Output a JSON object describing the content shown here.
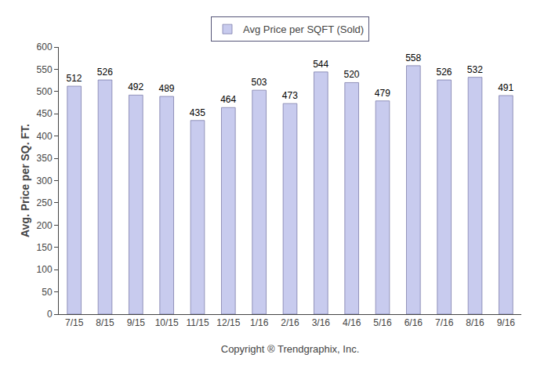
{
  "chart_data": {
    "type": "bar",
    "categories": [
      "7/15",
      "8/15",
      "9/15",
      "10/15",
      "11/15",
      "12/15",
      "1/16",
      "2/16",
      "3/16",
      "4/16",
      "5/16",
      "6/16",
      "7/16",
      "8/16",
      "9/16"
    ],
    "series": [
      {
        "name": "Avg Price per SQFT (Sold)",
        "color": "#c8cbee",
        "values": [
          512,
          526,
          492,
          489,
          435,
          464,
          503,
          473,
          544,
          520,
          479,
          558,
          526,
          532,
          491
        ]
      }
    ],
    "xlabel": "Copyright ® Trendgraphix, Inc.",
    "ylabel": "Avg. Price per SQ. FT.",
    "ylim": [
      0,
      600
    ],
    "yticks": [
      0,
      50,
      100,
      150,
      200,
      250,
      300,
      350,
      400,
      450,
      500,
      550,
      600
    ],
    "grid": false,
    "legend": "top",
    "data_labels": true
  }
}
